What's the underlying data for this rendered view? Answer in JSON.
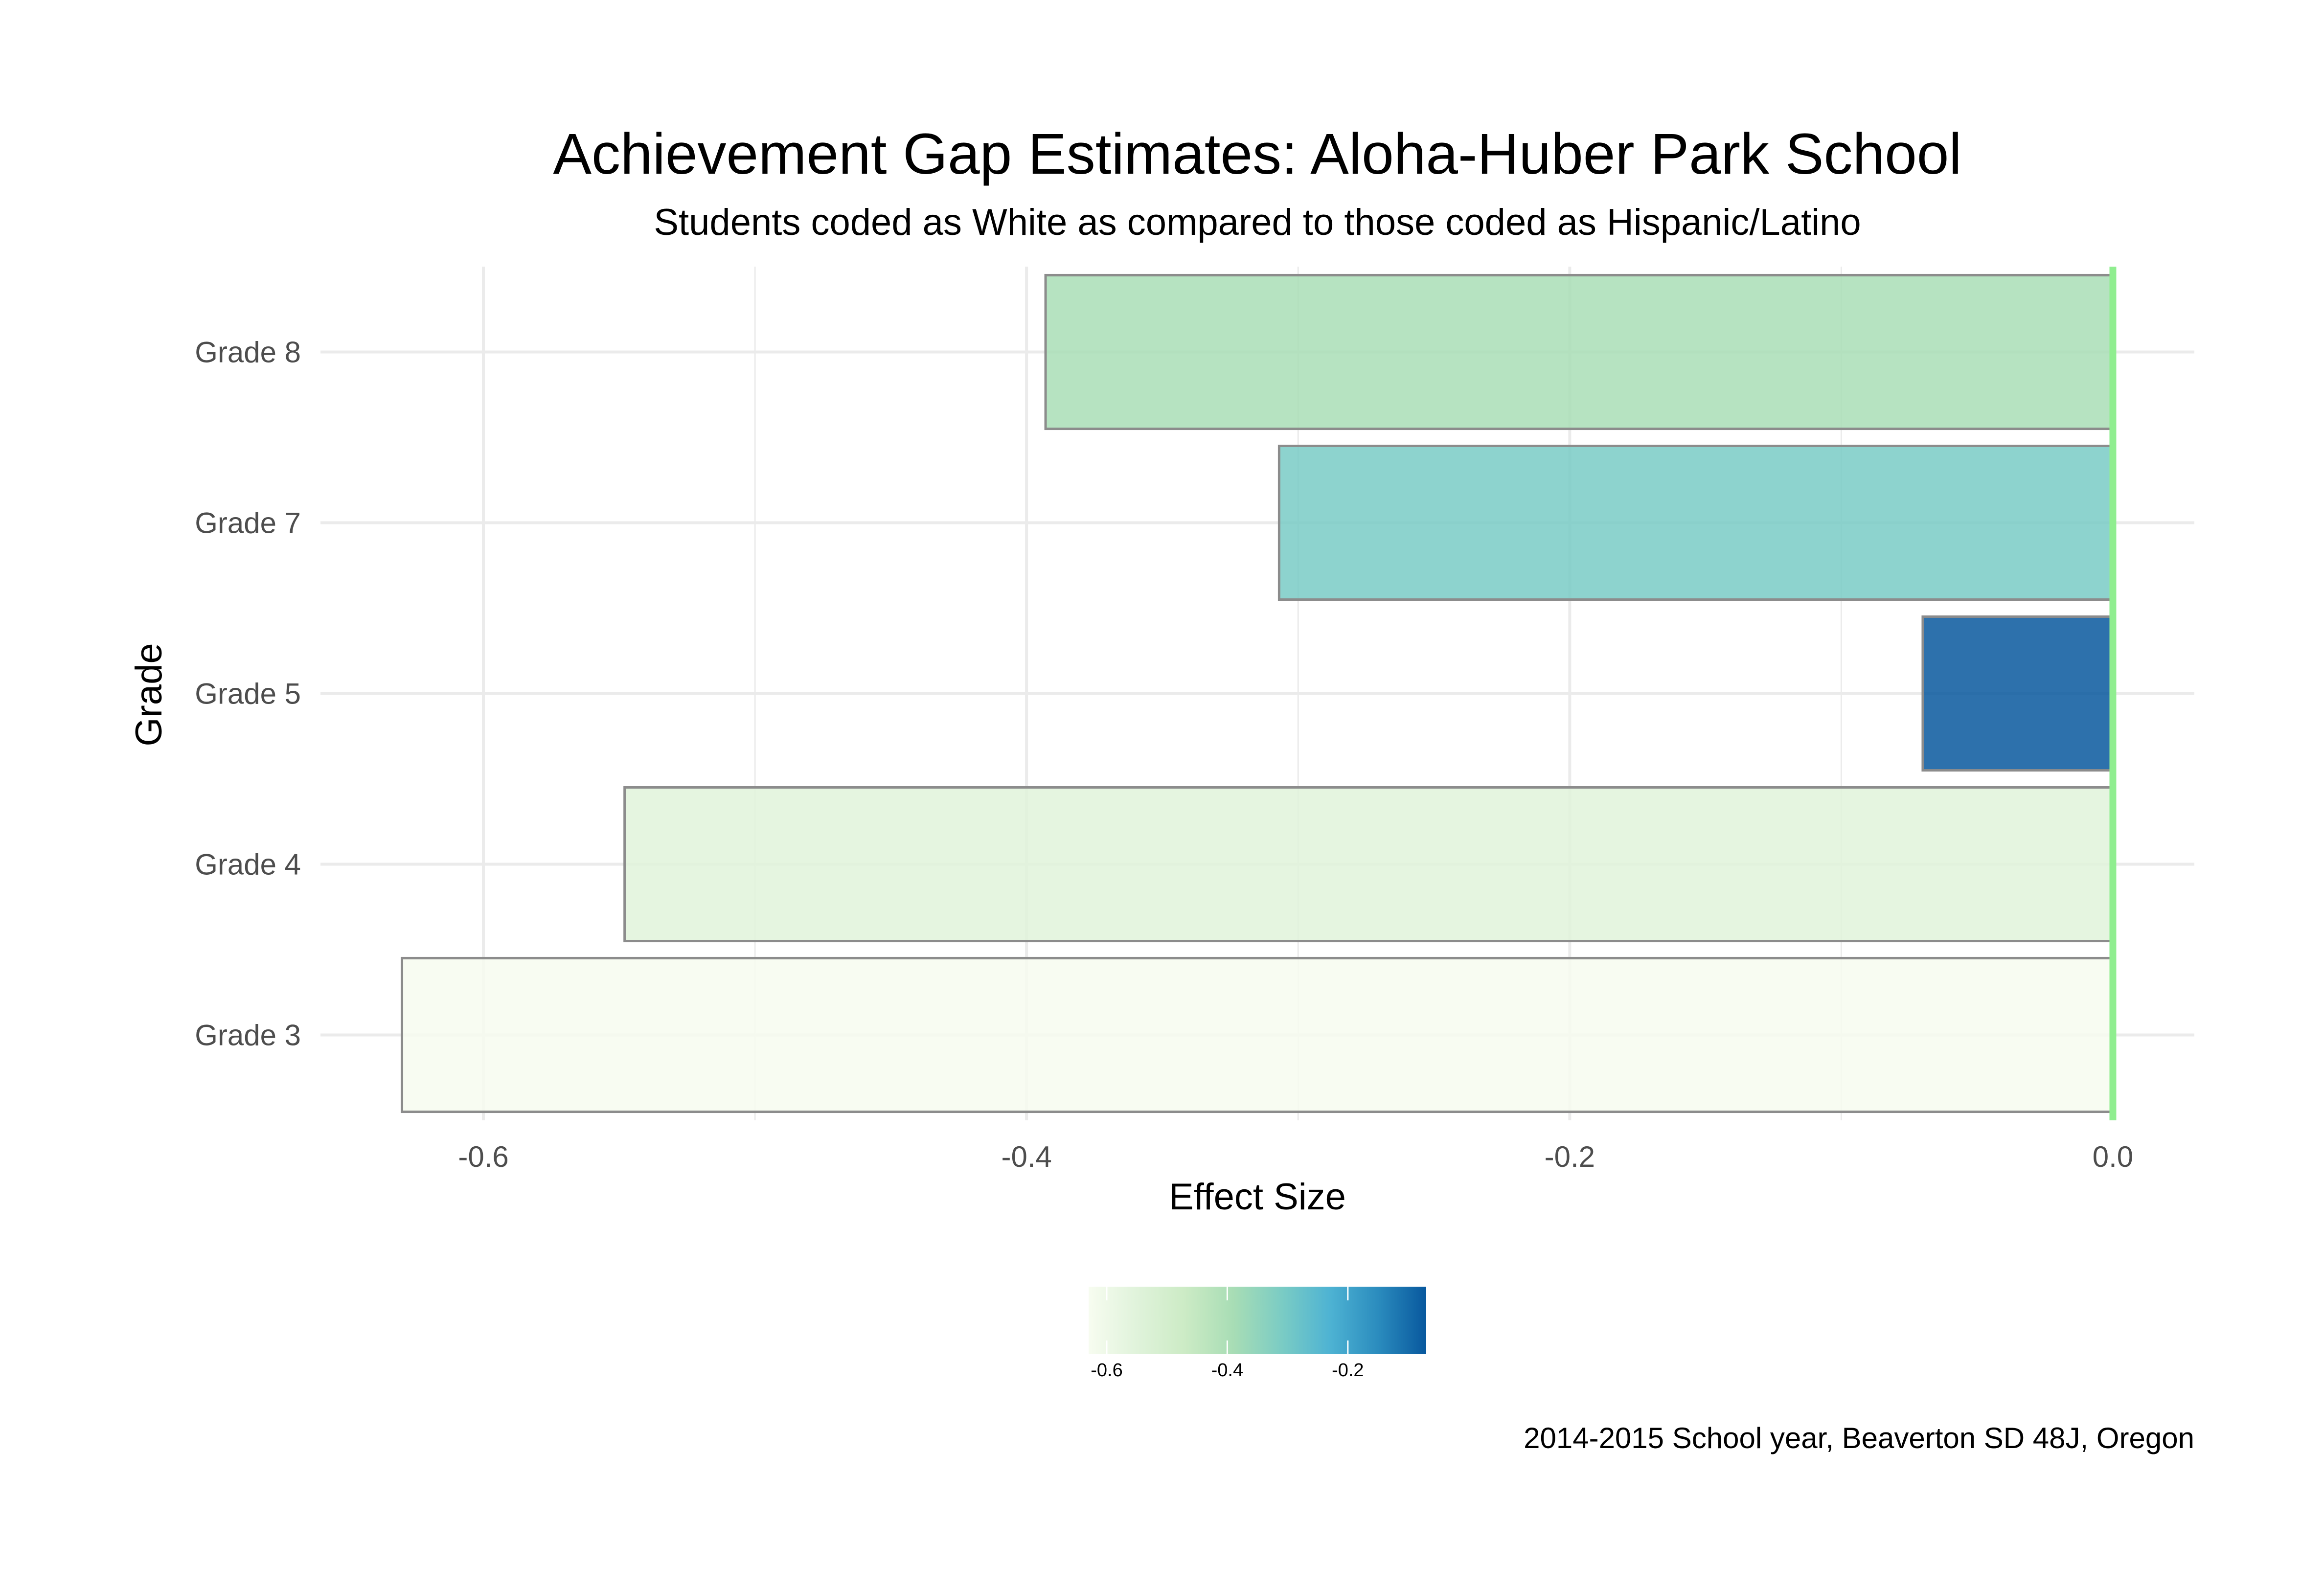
{
  "chart_data": {
    "type": "bar",
    "orientation": "horizontal",
    "title": "Achievement Gap Estimates: Aloha-Huber Park School",
    "subtitle": "Students coded as White as compared to those coded as Hispanic/Latino",
    "xlabel": "Effect Size",
    "ylabel": "Grade",
    "caption": "2014-2015 School year, Beaverton SD 48J, Oregon",
    "categories": [
      "Grade 8",
      "Grade 7",
      "Grade 5",
      "Grade 4",
      "Grade 3"
    ],
    "values": [
      -0.393,
      -0.307,
      -0.07,
      -0.548,
      -0.63
    ],
    "xlim": [
      -0.66,
      0.03
    ],
    "x_ticks": [
      -0.6,
      -0.4,
      -0.2,
      0.0
    ],
    "x_tick_labels": [
      "-0.6",
      "-0.4",
      "-0.2",
      "0.0"
    ],
    "reference_line": 0.0,
    "grid": true,
    "legend": {
      "type": "colorbar",
      "placement": "bottom",
      "range": [
        -0.63,
        -0.07
      ],
      "ticks": [
        -0.6,
        -0.4,
        -0.2
      ],
      "tick_labels": [
        "-0.6",
        "-0.4",
        "-0.2"
      ]
    },
    "colors": {
      "palette": [
        "#f7fcf0",
        "#e0f3db",
        "#ccebc5",
        "#a8ddb5",
        "#7bccc4",
        "#4eb3d3",
        "#2b8cbe",
        "#08589e"
      ],
      "bar_outline": "#8c8c8c",
      "reference_line": "#90ee90",
      "grid": "#ebebeb",
      "text": "#000000",
      "tick_text": "#4d4d4d"
    }
  }
}
